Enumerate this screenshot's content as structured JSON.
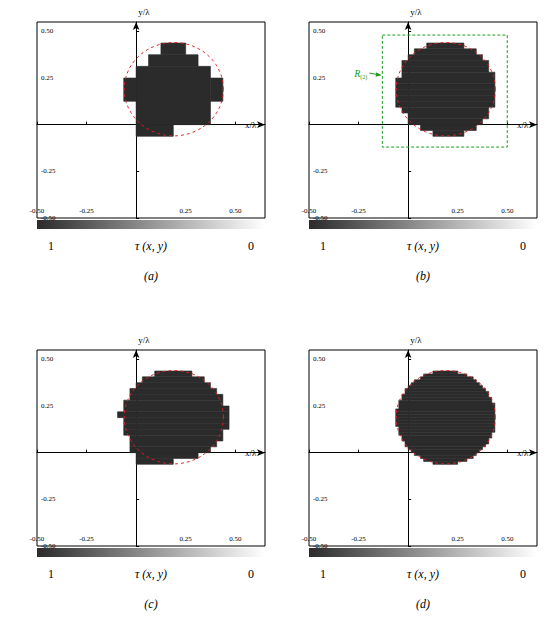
{
  "chart_data": {
    "type": "heatmap",
    "xlabel": "x/λ",
    "ylabel": "y/λ",
    "xlim": [
      -0.5,
      0.65
    ],
    "ylim": [
      -0.5,
      0.55
    ],
    "xticks": [
      {
        "value": -0.5,
        "label": "-0.50"
      },
      {
        "value": -0.25,
        "label": "-0.25"
      },
      {
        "value": 0.25,
        "label": "0.25"
      },
      {
        "value": 0.5,
        "label": "0.50"
      }
    ],
    "yticks": [
      {
        "value": -0.5,
        "label": "-0.50"
      },
      {
        "value": -0.25,
        "label": "-0.25"
      },
      {
        "value": 0.25,
        "label": "0.25"
      },
      {
        "value": 0.5,
        "label": "0.50"
      }
    ],
    "grid": false,
    "colorbar": {
      "range": [
        0,
        1
      ],
      "label": "τ (x, y)"
    },
    "cell_value": 1,
    "reference_circle": {
      "center": [
        0.19,
        0.19
      ],
      "radius": 0.25
    },
    "panels": [
      {
        "label": "(a)",
        "cells": [
          [
            0.125,
            0.25,
            0.375,
            0.4375
          ],
          [
            0.0625,
            0.3125,
            0.3125,
            0.375
          ],
          [
            0,
            0.375,
            0,
            0.3125
          ],
          [
            -0.0625,
            0,
            0.125,
            0.25
          ],
          [
            0.375,
            0.4375,
            0.125,
            0.25
          ],
          [
            0,
            0.1875,
            -0.0625,
            0
          ]
        ]
      },
      {
        "label": "(b)",
        "region": {
          "x": [
            -0.13,
            0.5
          ],
          "y": [
            -0.12,
            0.48
          ],
          "label": "R",
          "subscript": "(2)"
        },
        "cells": [
          [
            0.125,
            0.28125,
            -0.0625,
            -0.03125
          ],
          [
            0.0625,
            0.34375,
            -0.03125,
            0
          ],
          [
            0,
            0.375,
            0,
            0.03125
          ],
          [
            0,
            0.40625,
            0.03125,
            0.0625
          ],
          [
            -0.03125,
            0.40625,
            0.0625,
            0.09375
          ],
          [
            -0.0625,
            0.4375,
            0.09375,
            0.125
          ],
          [
            -0.0625,
            0.4375,
            0.125,
            0.15625
          ],
          [
            -0.0625,
            0.4375,
            0.15625,
            0.1875
          ],
          [
            -0.0625,
            0.4375,
            0.1875,
            0.21875
          ],
          [
            -0.0625,
            0.4375,
            0.21875,
            0.25
          ],
          [
            -0.03125,
            0.4375,
            0.25,
            0.28125
          ],
          [
            -0.03125,
            0.40625,
            0.28125,
            0.3125
          ],
          [
            -0.03125,
            0.40625,
            0.3125,
            0.34375
          ],
          [
            0,
            0.375,
            0.34375,
            0.375
          ],
          [
            0.03125,
            0.34375,
            0.375,
            0.40625
          ],
          [
            0.09375,
            0.28125,
            0.40625,
            0.4375
          ]
        ]
      },
      {
        "label": "(c)",
        "cells": [
          [
            0,
            0.1875,
            -0.0625,
            -0.03125
          ],
          [
            0,
            0.3125,
            -0.03125,
            0
          ],
          [
            -0.03125,
            0.375,
            0,
            0.03125
          ],
          [
            -0.03125,
            0.40625,
            0.03125,
            0.0625
          ],
          [
            -0.03125,
            0.4375,
            0.0625,
            0.09375
          ],
          [
            -0.0625,
            0.4375,
            0.09375,
            0.125
          ],
          [
            -0.0625,
            0.46875,
            0.125,
            0.15625
          ],
          [
            -0.0625,
            0.46875,
            0.15625,
            0.1875
          ],
          [
            -0.09375,
            0.46875,
            0.1875,
            0.21875
          ],
          [
            -0.0625,
            0.46875,
            0.21875,
            0.25
          ],
          [
            -0.0625,
            0.4375,
            0.25,
            0.28125
          ],
          [
            -0.03125,
            0.4375,
            0.28125,
            0.3125
          ],
          [
            -0.03125,
            0.40625,
            0.3125,
            0.34375
          ],
          [
            0,
            0.375,
            0.34375,
            0.375
          ],
          [
            0.03125,
            0.34375,
            0.375,
            0.40625
          ],
          [
            0.09375,
            0.28125,
            0.40625,
            0.4375
          ]
        ]
      },
      {
        "label": "(d)",
        "cells": [
          [
            0.125,
            0.25,
            -0.0625,
            -0.046875
          ],
          [
            0.078125,
            0.296875,
            -0.046875,
            -0.03125
          ],
          [
            0.0625,
            0.328125,
            -0.03125,
            -0.015625
          ],
          [
            0.03125,
            0.34375,
            -0.015625,
            0
          ],
          [
            0.015625,
            0.359375,
            0,
            0.015625
          ],
          [
            0,
            0.375,
            0.015625,
            0.03125
          ],
          [
            -0.015625,
            0.390625,
            0.03125,
            0.046875
          ],
          [
            -0.015625,
            0.40625,
            0.046875,
            0.0625
          ],
          [
            -0.03125,
            0.40625,
            0.0625,
            0.078125
          ],
          [
            -0.03125,
            0.421875,
            0.078125,
            0.09375
          ],
          [
            -0.046875,
            0.421875,
            0.09375,
            0.109375
          ],
          [
            -0.046875,
            0.4375,
            0.109375,
            0.125
          ],
          [
            -0.046875,
            0.4375,
            0.125,
            0.140625
          ],
          [
            -0.0625,
            0.4375,
            0.140625,
            0.15625
          ],
          [
            -0.0625,
            0.4375,
            0.15625,
            0.171875
          ],
          [
            -0.0625,
            0.4375,
            0.171875,
            0.1875
          ],
          [
            -0.0625,
            0.4375,
            0.1875,
            0.203125
          ],
          [
            -0.0625,
            0.4375,
            0.203125,
            0.21875
          ],
          [
            -0.0625,
            0.4375,
            0.21875,
            0.234375
          ],
          [
            -0.046875,
            0.4375,
            0.234375,
            0.25
          ],
          [
            -0.046875,
            0.4375,
            0.25,
            0.265625
          ],
          [
            -0.046875,
            0.421875,
            0.265625,
            0.28125
          ],
          [
            -0.03125,
            0.421875,
            0.28125,
            0.296875
          ],
          [
            -0.03125,
            0.40625,
            0.296875,
            0.3125
          ],
          [
            -0.015625,
            0.40625,
            0.3125,
            0.328125
          ],
          [
            -0.015625,
            0.390625,
            0.328125,
            0.34375
          ],
          [
            0,
            0.375,
            0.34375,
            0.359375
          ],
          [
            0.015625,
            0.359375,
            0.359375,
            0.375
          ],
          [
            0.03125,
            0.34375,
            0.375,
            0.390625
          ],
          [
            0.0625,
            0.328125,
            0.390625,
            0.40625
          ],
          [
            0.078125,
            0.296875,
            0.40625,
            0.421875
          ],
          [
            0.125,
            0.25,
            0.421875,
            0.4375
          ]
        ]
      }
    ]
  }
}
